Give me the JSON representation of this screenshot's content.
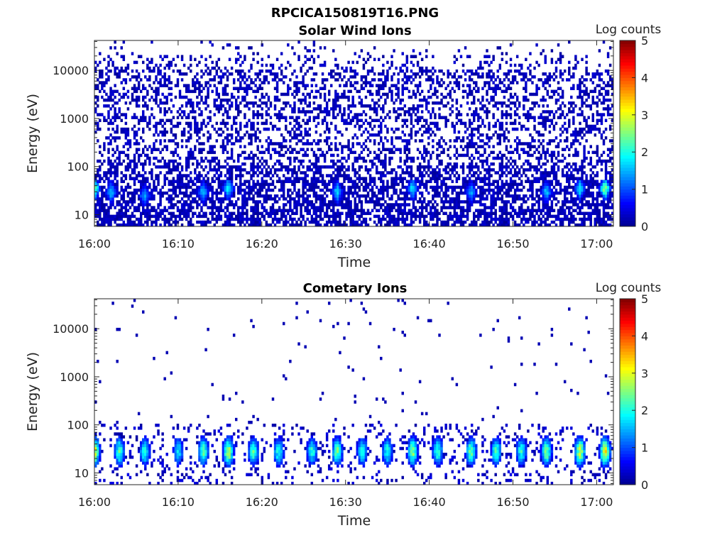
{
  "figure_title": "RPCICA150819T16.PNG",
  "colorbar_label": "Log counts",
  "colormap": [
    "#00008f",
    "#0000ff",
    "#0080ff",
    "#00ffff",
    "#80ff80",
    "#ffff00",
    "#ff8000",
    "#ff0000",
    "#800000"
  ],
  "chart_data": [
    {
      "type": "heatmap",
      "title": "Solar Wind Ions",
      "xlabel": "Time",
      "ylabel": "Energy (eV)",
      "yscale": "log",
      "ylim": [
        5.7,
        42000
      ],
      "yticks": [
        {
          "value": 10,
          "label": "10"
        },
        {
          "value": 100,
          "label": "100"
        },
        {
          "value": 1000,
          "label": "1000"
        },
        {
          "value": 10000,
          "label": "10000"
        }
      ],
      "xlim": [
        "16:00",
        "17:02"
      ],
      "xticks": [
        "16:00",
        "16:10",
        "16:20",
        "16:30",
        "16:40",
        "16:50",
        "17:00"
      ],
      "colorbar": {
        "label": "Log counts",
        "range": [
          0,
          5
        ],
        "ticks": [
          "0",
          "1",
          "2",
          "3",
          "4",
          "5"
        ]
      },
      "pattern": "noise",
      "hot_spots": [
        {
          "time": "16:00",
          "energy": 35,
          "value": 2.8
        },
        {
          "time": "16:02",
          "energy": 30,
          "value": 1.8
        },
        {
          "time": "16:06",
          "energy": 25,
          "value": 1.6
        },
        {
          "time": "16:13",
          "energy": 30,
          "value": 1.8
        },
        {
          "time": "16:16",
          "energy": 35,
          "value": 2.2
        },
        {
          "time": "16:29",
          "energy": 30,
          "value": 1.9
        },
        {
          "time": "16:38",
          "energy": 35,
          "value": 2.0
        },
        {
          "time": "16:45",
          "energy": 30,
          "value": 1.7
        },
        {
          "time": "16:54",
          "energy": 30,
          "value": 1.8
        },
        {
          "time": "16:58",
          "energy": 35,
          "value": 2.0
        },
        {
          "time": "17:01",
          "energy": 35,
          "value": 2.9
        }
      ]
    },
    {
      "type": "heatmap",
      "title": "Cometary Ions",
      "xlabel": "Time",
      "ylabel": "Energy (eV)",
      "yscale": "log",
      "ylim": [
        5.7,
        42000
      ],
      "yticks": [
        {
          "value": 10,
          "label": "10"
        },
        {
          "value": 100,
          "label": "100"
        },
        {
          "value": 1000,
          "label": "1000"
        },
        {
          "value": 10000,
          "label": "10000"
        }
      ],
      "xlim": [
        "16:00",
        "17:02"
      ],
      "xticks": [
        "16:00",
        "16:10",
        "16:20",
        "16:30",
        "16:40",
        "16:50",
        "17:00"
      ],
      "colorbar": {
        "label": "Log counts",
        "range": [
          0,
          5
        ],
        "ticks": [
          "0",
          "1",
          "2",
          "3",
          "4",
          "5"
        ]
      },
      "pattern": "bursts",
      "bursts": [
        {
          "time": "16:00",
          "peak": 3.6
        },
        {
          "time": "16:03",
          "peak": 2.6
        },
        {
          "time": "16:06",
          "peak": 2.4
        },
        {
          "time": "16:10",
          "peak": 2.2
        },
        {
          "time": "16:13",
          "peak": 2.8
        },
        {
          "time": "16:16",
          "peak": 3.3
        },
        {
          "time": "16:19",
          "peak": 2.6
        },
        {
          "time": "16:22",
          "peak": 2.4
        },
        {
          "time": "16:26",
          "peak": 2.4
        },
        {
          "time": "16:29",
          "peak": 2.8
        },
        {
          "time": "16:32",
          "peak": 2.4
        },
        {
          "time": "16:35",
          "peak": 2.4
        },
        {
          "time": "16:38",
          "peak": 3.0
        },
        {
          "time": "16:41",
          "peak": 2.6
        },
        {
          "time": "16:45",
          "peak": 2.9
        },
        {
          "time": "16:48",
          "peak": 2.6
        },
        {
          "time": "16:51",
          "peak": 2.5
        },
        {
          "time": "16:54",
          "peak": 2.9
        },
        {
          "time": "16:58",
          "peak": 3.4
        },
        {
          "time": "17:01",
          "peak": 3.7
        }
      ]
    }
  ]
}
